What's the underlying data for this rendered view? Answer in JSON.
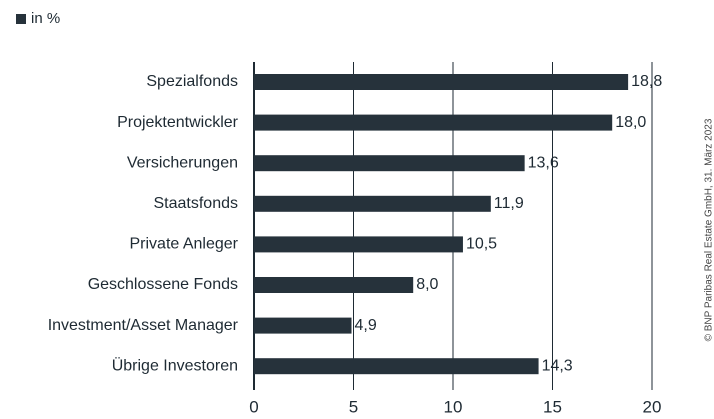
{
  "chart_data": {
    "type": "bar",
    "orientation": "horizontal",
    "categories": [
      "Spezialfonds",
      "Projektentwickler",
      "Versicherungen",
      "Staatsfonds",
      "Private Anleger",
      "Geschlossene Fonds",
      "Investment/Asset Manager",
      "Übrige Investoren"
    ],
    "series": [
      {
        "name": "in %",
        "color": "#26323b",
        "values": [
          18.8,
          18.0,
          13.6,
          11.9,
          10.5,
          8.0,
          4.9,
          14.3
        ],
        "value_labels": [
          "18,8",
          "18,0",
          "13,6",
          "11,9",
          "10,5",
          "8,0",
          "4,9",
          "14,3"
        ]
      }
    ],
    "xlim": [
      0,
      20
    ],
    "xticks": [
      0,
      5,
      10,
      15,
      20
    ],
    "grid": true,
    "legend": "top-left",
    "source": "© BNP Paribas Real Estate GmbH, 31. März 2023"
  }
}
